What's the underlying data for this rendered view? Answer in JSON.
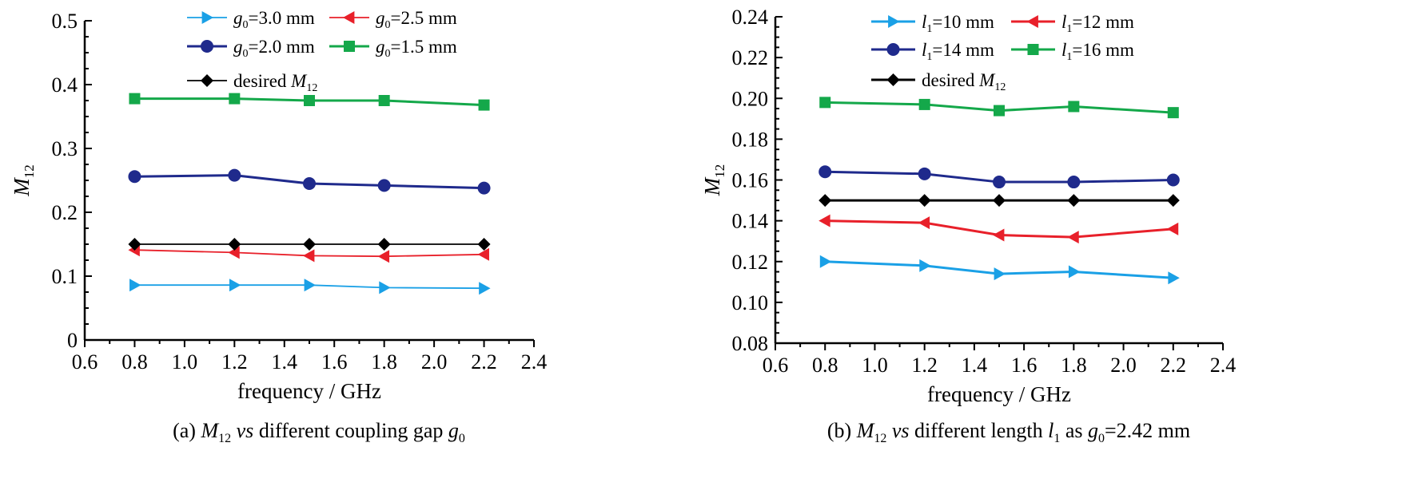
{
  "chart_data": [
    {
      "type": "line",
      "caption": "(a) M12 vs different coupling gap g0",
      "xlabel": "frequency / GHz",
      "ylabel": "M12",
      "xlim": [
        0.6,
        2.4
      ],
      "ylim": [
        0,
        0.5
      ],
      "xticks": [
        "0.6",
        "0.8",
        "1.0",
        "1.2",
        "1.4",
        "1.6",
        "1.8",
        "2.0",
        "2.2",
        "2.4"
      ],
      "yticks": [
        "0",
        "0.1",
        "0.2",
        "0.3",
        "0.4",
        "0.5"
      ],
      "x": [
        0.8,
        1.2,
        1.5,
        1.8,
        2.2
      ],
      "legend_position": "top",
      "grid": false,
      "series": [
        {
          "name": "g0=3.0 mm",
          "values": [
            0.086,
            0.086,
            0.086,
            0.082,
            0.081
          ],
          "color": "#1aa0e6",
          "marker": "triangle-right"
        },
        {
          "name": "g0=2.5 mm",
          "values": [
            0.141,
            0.137,
            0.132,
            0.131,
            0.134
          ],
          "color": "#e8202a",
          "marker": "triangle-left"
        },
        {
          "name": "g0=2.0 mm",
          "values": [
            0.256,
            0.258,
            0.245,
            0.242,
            0.238
          ],
          "color": "#1f2a8c",
          "marker": "circle"
        },
        {
          "name": "g0=1.5 mm",
          "values": [
            0.378,
            0.378,
            0.375,
            0.375,
            0.368
          ],
          "color": "#14a84a",
          "marker": "square"
        },
        {
          "name": "desired M12",
          "values": [
            0.15,
            0.15,
            0.15,
            0.15,
            0.15
          ],
          "color": "#000000",
          "marker": "diamond"
        }
      ],
      "caption_parts": {
        "pre": "(a) ",
        "m": "M",
        "msub": "12",
        "vs": " vs",
        "mid": " different coupling gap ",
        "g": "g",
        "gsub": "0",
        "post": ""
      },
      "legend_parts": [
        {
          "v": "g",
          "s": "0",
          "t": "=3.0 mm"
        },
        {
          "v": "g",
          "s": "0",
          "t": "=2.5 mm"
        },
        {
          "v": "g",
          "s": "0",
          "t": "=2.0 mm"
        },
        {
          "v": "g",
          "s": "0",
          "t": "=1.5 mm"
        },
        {
          "p": "desired ",
          "v": "M",
          "s": "12",
          "t": ""
        }
      ]
    },
    {
      "type": "line",
      "caption": "(b) M12 vs different length l1 as g0=2.42 mm",
      "xlabel": "frequency / GHz",
      "ylabel": "M12",
      "xlim": [
        0.6,
        2.4
      ],
      "ylim": [
        0.08,
        0.24
      ],
      "xticks": [
        "0.6",
        "0.8",
        "1.0",
        "1.2",
        "1.4",
        "1.6",
        "1.8",
        "2.0",
        "2.2",
        "2.4"
      ],
      "yticks": [
        "0.08",
        "0.10",
        "0.12",
        "0.14",
        "0.16",
        "0.18",
        "0.20",
        "0.22",
        "0.24"
      ],
      "x": [
        0.8,
        1.2,
        1.5,
        1.8,
        2.2
      ],
      "legend_position": "top",
      "grid": false,
      "series": [
        {
          "name": "l1=10 mm",
          "values": [
            0.12,
            0.118,
            0.114,
            0.115,
            0.112
          ],
          "color": "#1aa0e6",
          "marker": "triangle-right"
        },
        {
          "name": "l1=12 mm",
          "values": [
            0.14,
            0.139,
            0.133,
            0.132,
            0.136
          ],
          "color": "#e8202a",
          "marker": "triangle-left"
        },
        {
          "name": "l1=14 mm",
          "values": [
            0.164,
            0.163,
            0.159,
            0.159,
            0.16
          ],
          "color": "#1f2a8c",
          "marker": "circle"
        },
        {
          "name": "l1=16 mm",
          "values": [
            0.198,
            0.197,
            0.194,
            0.196,
            0.193
          ],
          "color": "#14a84a",
          "marker": "square"
        },
        {
          "name": "desired M12",
          "values": [
            0.15,
            0.15,
            0.15,
            0.15,
            0.15
          ],
          "color": "#000000",
          "marker": "diamond"
        }
      ],
      "caption_parts": {
        "pre": "(b) ",
        "m": "M",
        "msub": "12",
        "vs": " vs",
        "mid": " different length ",
        "g": "l",
        "gsub": "1",
        "post": " as ",
        "g2": "g",
        "g2sub": "0",
        "post2": "=2.42 mm"
      },
      "legend_parts": [
        {
          "v": "l",
          "s": "1",
          "t": "=10 mm"
        },
        {
          "v": "l",
          "s": "1",
          "t": "=12 mm"
        },
        {
          "v": "l",
          "s": "1",
          "t": "=14 mm"
        },
        {
          "v": "l",
          "s": "1",
          "t": "=16 mm"
        },
        {
          "p": "desired ",
          "v": "M",
          "s": "12",
          "t": ""
        }
      ]
    }
  ]
}
